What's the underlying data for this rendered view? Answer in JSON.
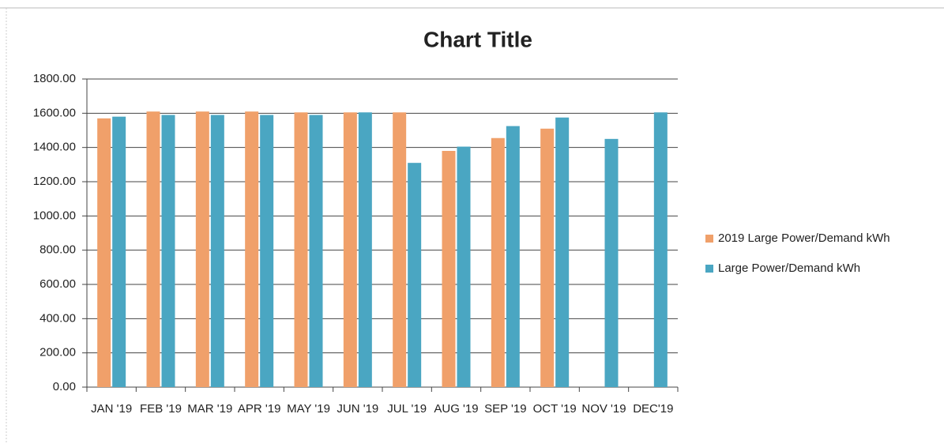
{
  "chart_data": {
    "type": "bar",
    "title": "Chart Title",
    "categories": [
      "JAN '19",
      "FEB '19",
      "MAR '19",
      "APR '19",
      "MAY '19",
      "JUN '19",
      "JUL '19",
      "AUG '19",
      "SEP '19",
      "OCT '19",
      "NOV '19",
      "DEC'19"
    ],
    "series": [
      {
        "name": "2019 Large Power/Demand kWh",
        "color": "#f0a06a",
        "values": [
          1570,
          1610,
          1610,
          1610,
          1605,
          1605,
          1605,
          1380,
          1455,
          1510,
          null,
          null
        ]
      },
      {
        "name": "Large Power/Demand kWh",
        "color": "#4aa6c2",
        "values": [
          1580,
          1590,
          1590,
          1590,
          1590,
          1605,
          1310,
          1405,
          1525,
          1575,
          1450,
          1605
        ]
      }
    ],
    "ylim": [
      0,
      1800
    ],
    "yticks": [
      {
        "value": 0,
        "label": "0.00"
      },
      {
        "value": 200,
        "label": "200.00"
      },
      {
        "value": 400,
        "label": "400.00"
      },
      {
        "value": 600,
        "label": "600.00"
      },
      {
        "value": 800,
        "label": "800.00"
      },
      {
        "value": 1000,
        "label": "1000.00"
      },
      {
        "value": 1200,
        "label": "1200.00"
      },
      {
        "value": 1400,
        "label": "1400.00"
      },
      {
        "value": 1600,
        "label": "1600.00"
      },
      {
        "value": 1800,
        "label": "1800.00"
      }
    ],
    "grid": true,
    "legend": "right"
  }
}
